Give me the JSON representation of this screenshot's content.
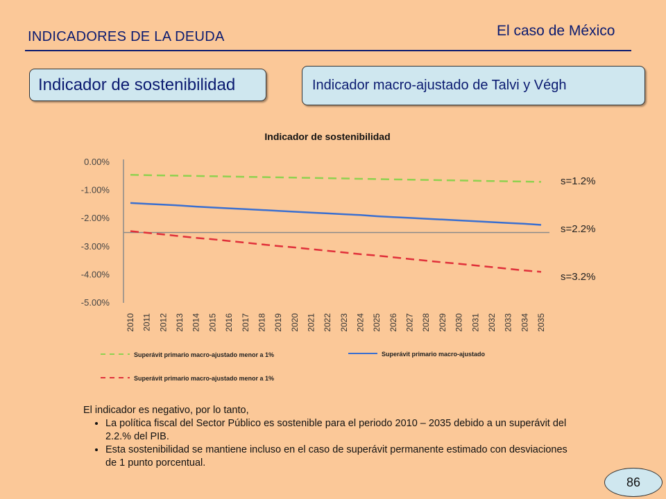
{
  "header": {
    "title": "INDICADORES DE LA DEUDA",
    "context": "El caso de México"
  },
  "boxes": {
    "left": "Indicador de sostenibilidad",
    "right": "Indicador macro-ajustado de Talvi y Végh"
  },
  "chart_data": {
    "type": "line",
    "title": "Indicador de sostenibilidad",
    "xlabel": "",
    "ylabel": "",
    "x": [
      "2010",
      "2011",
      "2012",
      "2013",
      "2014",
      "2015",
      "2016",
      "2017",
      "2018",
      "2019",
      "2020",
      "2021",
      "2022",
      "2023",
      "2024",
      "2025",
      "2026",
      "2027",
      "2028",
      "2029",
      "2030",
      "2031",
      "2032",
      "2033",
      "2034",
      "2035"
    ],
    "ylim": [
      -5.0,
      0.0
    ],
    "yticks": [
      "0.00%",
      "-1.00%",
      "-2.00%",
      "-3.00%",
      "-4.00%",
      "-5.00%"
    ],
    "grid": false,
    "reference_line": -2.5,
    "series": [
      {
        "name": "Superávit primario macro-ajustado menor a 1%",
        "color": "#8FD14F",
        "dash": "dashed",
        "end_label": "s=1.2%",
        "values": [
          -0.45,
          -0.46,
          -0.47,
          -0.48,
          -0.49,
          -0.5,
          -0.51,
          -0.52,
          -0.53,
          -0.54,
          -0.55,
          -0.56,
          -0.57,
          -0.58,
          -0.59,
          -0.6,
          -0.61,
          -0.62,
          -0.63,
          -0.64,
          -0.65,
          -0.66,
          -0.67,
          -0.68,
          -0.69,
          -0.7
        ]
      },
      {
        "name": "Superávit primario macro-ajustado",
        "color": "#3A6FD0",
        "dash": "solid",
        "end_label": "s=2.2%",
        "values": [
          -1.45,
          -1.48,
          -1.51,
          -1.54,
          -1.58,
          -1.61,
          -1.64,
          -1.67,
          -1.7,
          -1.73,
          -1.76,
          -1.79,
          -1.82,
          -1.85,
          -1.88,
          -1.92,
          -1.95,
          -1.98,
          -2.01,
          -2.04,
          -2.07,
          -2.1,
          -2.13,
          -2.16,
          -2.19,
          -2.23
        ]
      },
      {
        "name": "Superávit primario macro-ajustado menor a 1%",
        "color": "#E0303A",
        "dash": "dashed",
        "end_label": "s=3.2%",
        "values": [
          -2.45,
          -2.51,
          -2.57,
          -2.63,
          -2.69,
          -2.74,
          -2.8,
          -2.86,
          -2.92,
          -2.98,
          -3.03,
          -3.09,
          -3.15,
          -3.21,
          -3.27,
          -3.32,
          -3.38,
          -3.44,
          -3.5,
          -3.56,
          -3.61,
          -3.67,
          -3.73,
          -3.79,
          -3.85,
          -3.9
        ]
      }
    ],
    "legend_position": "bottom"
  },
  "notes": {
    "intro": "El indicador es negativo, por lo tanto,",
    "bullets": [
      "La política fiscal del Sector Público es sostenible para el periodo 2010 – 2035 debido a un superávit del 2.2.% del PIB.",
      "Esta sostenibilidad se mantiene incluso en el caso de superávit permanente estimado con desviaciones de 1 punto porcentual."
    ]
  },
  "page_number": "86"
}
